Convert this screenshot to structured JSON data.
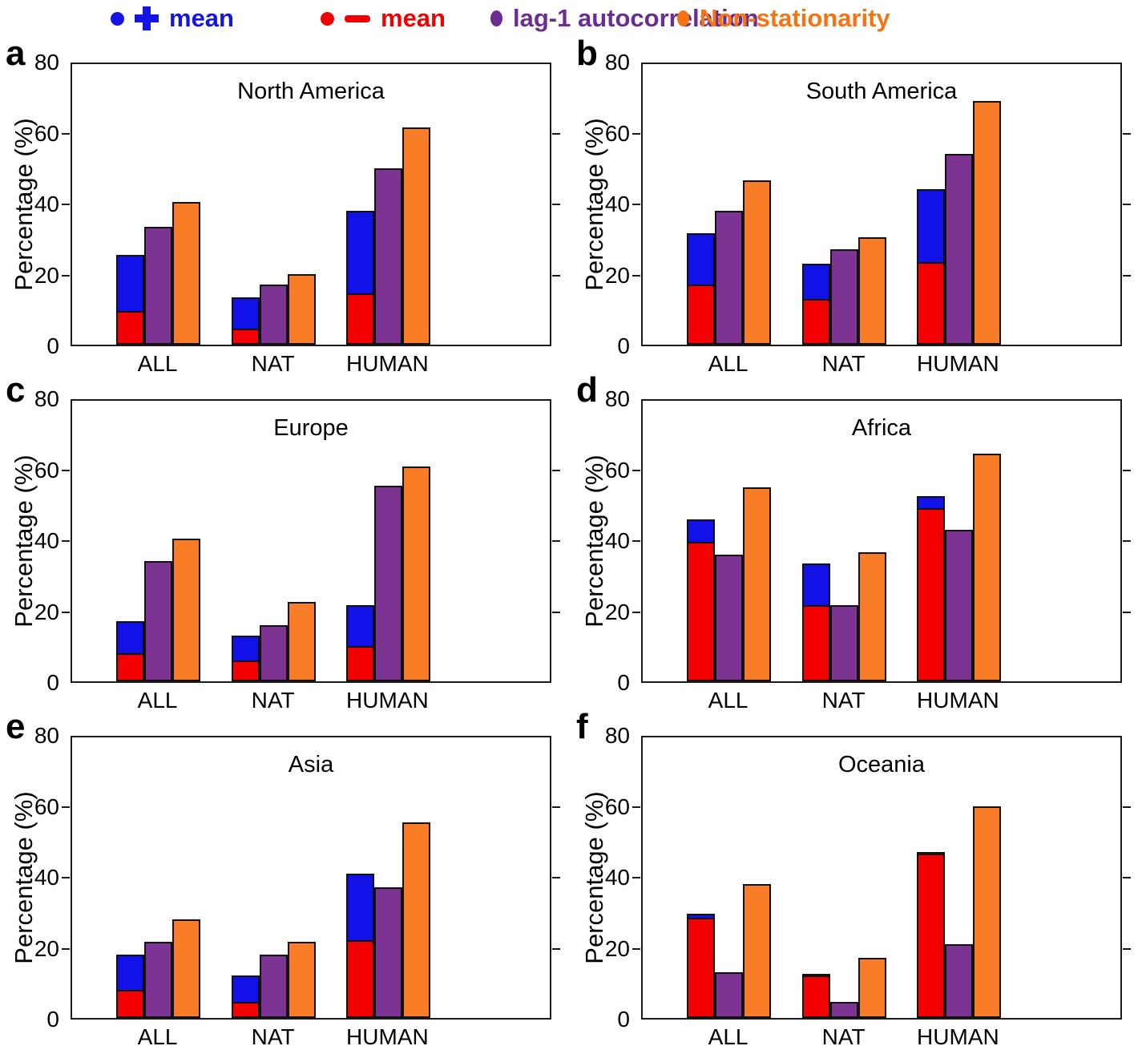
{
  "legend": {
    "items": [
      {
        "marker": "circle-plus",
        "label": "mean",
        "color": "#1414e6",
        "x": 138
      },
      {
        "marker": "circle-minus",
        "label": "mean",
        "color": "#f20000",
        "x": 400
      },
      {
        "marker": "circle",
        "label": "lag-1 autocorrelation",
        "color": "#6b2d91",
        "x": 612
      },
      {
        "marker": "circle",
        "label": "Non-stationarity",
        "color": "#f8730f",
        "x": 845
      }
    ]
  },
  "axis": {
    "ylabel": "Percentage (%)",
    "ylim": [
      0,
      80
    ],
    "yticks": [
      0,
      20,
      40,
      60,
      80
    ],
    "categories": [
      "ALL",
      "NAT",
      "HUMAN"
    ]
  },
  "colors": {
    "mean_increase": "#1212e8",
    "mean_decrease": "#f30000",
    "lag1_autocorrelation": "#7c3392",
    "non_stationarity": "#f87d26",
    "bar_edge": "#111111"
  },
  "chart_data": [
    {
      "type": "bar",
      "panel": "a",
      "title": "North America",
      "categories": [
        "ALL",
        "NAT",
        "HUMAN"
      ],
      "series": [
        {
          "name": "mean increase (blue, bar top)",
          "values": [
            25.5,
            13.5,
            38.0
          ]
        },
        {
          "name": "mean decrease (red overlay)",
          "values": [
            9.5,
            4.5,
            14.5
          ]
        },
        {
          "name": "lag-1 autocorrelation",
          "values": [
            33.5,
            17.0,
            50.0
          ]
        },
        {
          "name": "Non-stationarity",
          "values": [
            40.5,
            20.0,
            61.5
          ]
        }
      ]
    },
    {
      "type": "bar",
      "panel": "b",
      "title": "South America",
      "categories": [
        "ALL",
        "NAT",
        "HUMAN"
      ],
      "series": [
        {
          "name": "mean increase (blue, bar top)",
          "values": [
            31.5,
            23.0,
            44.0
          ]
        },
        {
          "name": "mean decrease (red overlay)",
          "values": [
            17.0,
            13.0,
            23.5
          ]
        },
        {
          "name": "lag-1 autocorrelation",
          "values": [
            38.0,
            27.0,
            54.0
          ]
        },
        {
          "name": "Non-stationarity",
          "values": [
            46.5,
            30.5,
            69.0
          ]
        }
      ]
    },
    {
      "type": "bar",
      "panel": "c",
      "title": "Europe",
      "categories": [
        "ALL",
        "NAT",
        "HUMAN"
      ],
      "series": [
        {
          "name": "mean increase (blue, bar top)",
          "values": [
            17.0,
            13.0,
            21.5
          ]
        },
        {
          "name": "mean decrease (red overlay)",
          "values": [
            8.0,
            6.0,
            10.0
          ]
        },
        {
          "name": "lag-1 autocorrelation",
          "values": [
            34.0,
            16.0,
            55.5
          ]
        },
        {
          "name": "Non-stationarity",
          "values": [
            40.5,
            22.5,
            61.0
          ]
        }
      ]
    },
    {
      "type": "bar",
      "panel": "d",
      "title": "Africa",
      "categories": [
        "ALL",
        "NAT",
        "HUMAN"
      ],
      "series": [
        {
          "name": "mean increase (blue, bar top)",
          "values": [
            46.0,
            33.5,
            52.5
          ]
        },
        {
          "name": "mean decrease (red overlay)",
          "values": [
            39.5,
            21.5,
            49.0
          ]
        },
        {
          "name": "lag-1 autocorrelation",
          "values": [
            36.0,
            21.5,
            43.0
          ]
        },
        {
          "name": "Non-stationarity",
          "values": [
            55.0,
            36.5,
            64.5
          ]
        }
      ]
    },
    {
      "type": "bar",
      "panel": "e",
      "title": "Asia",
      "categories": [
        "ALL",
        "NAT",
        "HUMAN"
      ],
      "series": [
        {
          "name": "mean increase (blue, bar top)",
          "values": [
            18.0,
            12.0,
            41.0
          ]
        },
        {
          "name": "mean decrease (red overlay)",
          "values": [
            8.0,
            4.5,
            22.0
          ]
        },
        {
          "name": "lag-1 autocorrelation",
          "values": [
            21.5,
            18.0,
            37.0
          ]
        },
        {
          "name": "Non-stationarity",
          "values": [
            28.0,
            21.5,
            55.5
          ]
        }
      ]
    },
    {
      "type": "bar",
      "panel": "f",
      "title": "Oceania",
      "categories": [
        "ALL",
        "NAT",
        "HUMAN"
      ],
      "series": [
        {
          "name": "mean increase (blue, bar top)",
          "values": [
            29.5,
            12.5,
            47.0
          ]
        },
        {
          "name": "mean decrease (red overlay)",
          "values": [
            28.5,
            12.0,
            46.5
          ]
        },
        {
          "name": "lag-1 autocorrelation",
          "values": [
            13.0,
            4.5,
            21.0
          ]
        },
        {
          "name": "Non-stationarity",
          "values": [
            38.0,
            17.0,
            60.0
          ]
        }
      ]
    }
  ]
}
